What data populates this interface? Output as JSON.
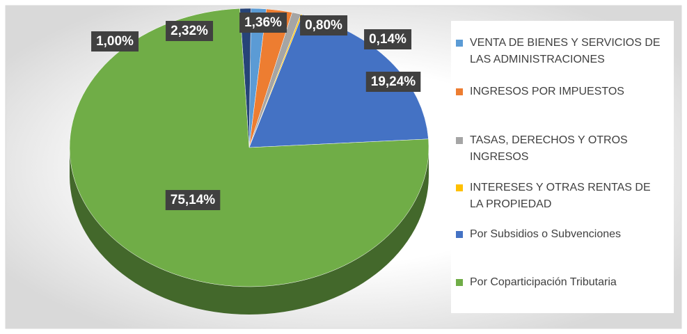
{
  "chart_data": {
    "type": "pie",
    "categories": [
      null,
      "VENTA DE BIENES Y SERVICIOS DE LAS ADMINISTRACIONES",
      "INGRESOS POR IMPUESTOS",
      "TASAS, DERECHOS Y OTROS INGRESOS",
      "INTERESES Y OTRAS RENTAS DE LA PROPIEDAD",
      "Por Subsidios o Subvenciones",
      "Por Coparticipación Tributaria"
    ],
    "values": [
      1.0,
      1.36,
      2.32,
      0.8,
      0.14,
      19.24,
      75.14
    ],
    "value_labels": [
      "1,00%",
      "1,36%",
      "2,32%",
      "0,80%",
      "0,14%",
      "19,24%",
      "75,14%"
    ],
    "colors": [
      "#264478",
      "#5b9bd5",
      "#ed7d31",
      "#a5a5a5",
      "#ffc000",
      "#4472c4",
      "#70ad47"
    ],
    "legend": "right"
  }
}
